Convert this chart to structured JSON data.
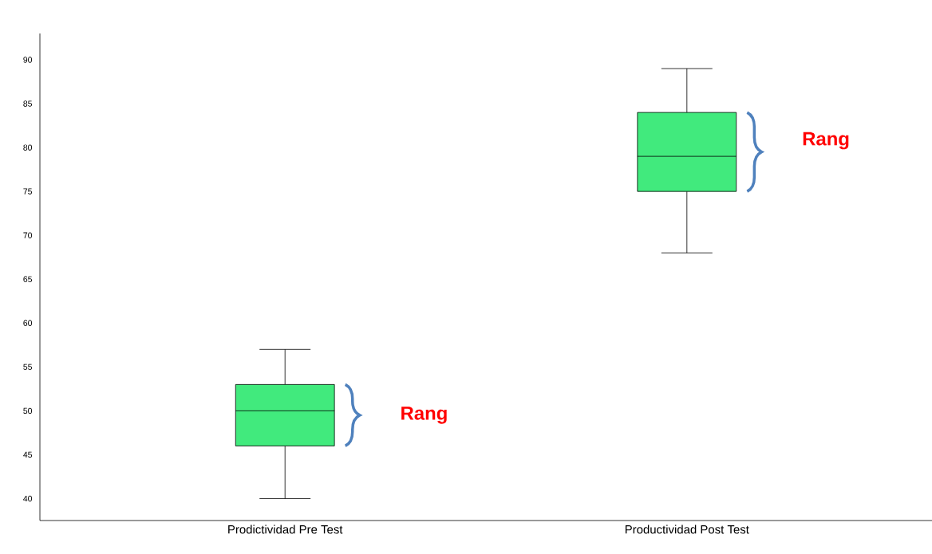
{
  "chart_data": {
    "type": "box",
    "categories": [
      "Prodictividad Pre Test",
      "Productividad Post Test"
    ],
    "boxes": [
      {
        "low": 40,
        "q1": 46,
        "median": 50,
        "q3": 53,
        "high": 57
      },
      {
        "low": 68,
        "q1": 75,
        "median": 79,
        "q3": 84,
        "high": 89
      }
    ],
    "color": "#41ea7d",
    "ylim": [
      37.5,
      93
    ],
    "yticks": [
      40,
      45,
      50,
      55,
      60,
      65,
      70,
      75,
      80,
      85,
      90
    ],
    "grid": false,
    "annotations": [
      "Rang",
      "Rang"
    ]
  }
}
